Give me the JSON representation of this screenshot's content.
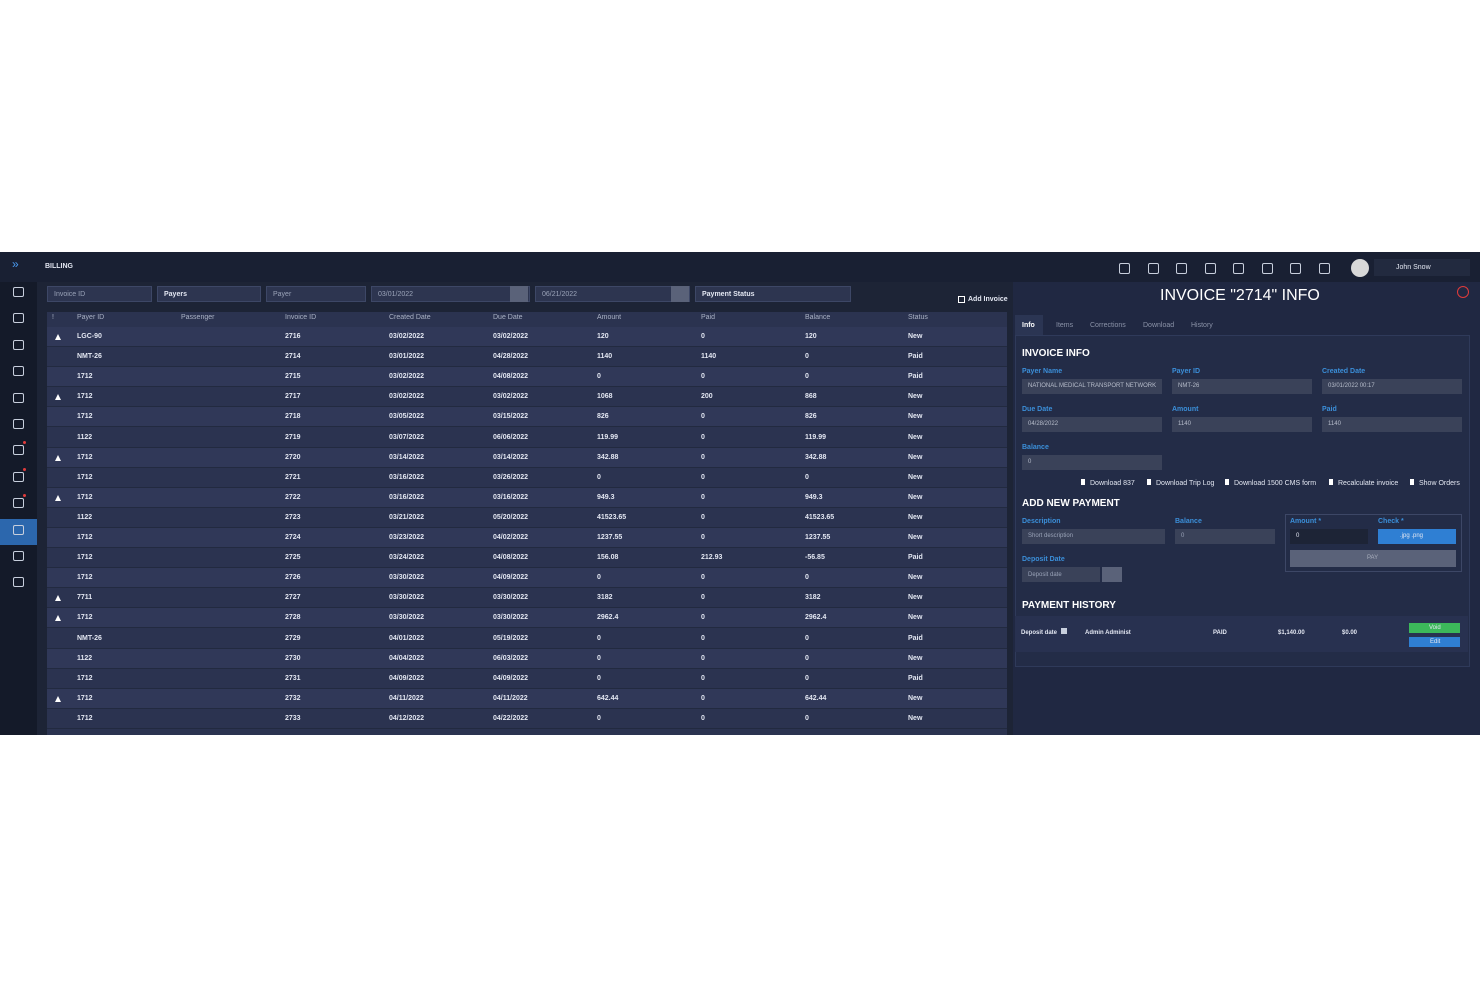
{
  "header": {
    "title": "BILLING",
    "user": "John Snow"
  },
  "filters": {
    "invoice_id": "Invoice ID",
    "payers": "Payers",
    "payer": "Payer",
    "date_from": "03/01/2022",
    "date_to": "06/21/2022",
    "payment_status": "Payment Status",
    "add_invoice": "Add Invoice"
  },
  "table": {
    "columns": [
      "!",
      "Payer ID",
      "Passenger",
      "Invoice ID",
      "Created Date",
      "Due Date",
      "Amount",
      "Paid",
      "Balance",
      "Status"
    ],
    "alerts": [
      true,
      false,
      false,
      true,
      false,
      false,
      true,
      false,
      true,
      false,
      false,
      false,
      false,
      true,
      true,
      false,
      false,
      false,
      true,
      false
    ],
    "rows": [
      [
        "LGC-90",
        "2716",
        "03/02/2022",
        "03/02/2022",
        "120",
        "0",
        "120",
        "New"
      ],
      [
        "NMT-26",
        "2714",
        "03/01/2022",
        "04/28/2022",
        "1140",
        "1140",
        "0",
        "Paid"
      ],
      [
        "1712",
        "2715",
        "03/02/2022",
        "04/08/2022",
        "0",
        "0",
        "0",
        "Paid"
      ],
      [
        "1712",
        "2717",
        "03/02/2022",
        "03/02/2022",
        "1068",
        "200",
        "868",
        "New"
      ],
      [
        "1712",
        "2718",
        "03/05/2022",
        "03/15/2022",
        "826",
        "0",
        "826",
        "New"
      ],
      [
        "1122",
        "2719",
        "03/07/2022",
        "06/06/2022",
        "119.99",
        "0",
        "119.99",
        "New"
      ],
      [
        "1712",
        "2720",
        "03/14/2022",
        "03/14/2022",
        "342.88",
        "0",
        "342.88",
        "New"
      ],
      [
        "1712",
        "2721",
        "03/16/2022",
        "03/26/2022",
        "0",
        "0",
        "0",
        "New"
      ],
      [
        "1712",
        "2722",
        "03/16/2022",
        "03/16/2022",
        "949.3",
        "0",
        "949.3",
        "New"
      ],
      [
        "1122",
        "2723",
        "03/21/2022",
        "05/20/2022",
        "41523.65",
        "0",
        "41523.65",
        "New"
      ],
      [
        "1712",
        "2724",
        "03/23/2022",
        "04/02/2022",
        "1237.55",
        "0",
        "1237.55",
        "New"
      ],
      [
        "1712",
        "2725",
        "03/24/2022",
        "04/08/2022",
        "156.08",
        "212.93",
        "-56.85",
        "Paid"
      ],
      [
        "1712",
        "2726",
        "03/30/2022",
        "04/09/2022",
        "0",
        "0",
        "0",
        "New"
      ],
      [
        "7711",
        "2727",
        "03/30/2022",
        "03/30/2022",
        "3182",
        "0",
        "3182",
        "New"
      ],
      [
        "1712",
        "2728",
        "03/30/2022",
        "03/30/2022",
        "2962.4",
        "0",
        "2962.4",
        "New"
      ],
      [
        "NMT-26",
        "2729",
        "04/01/2022",
        "05/19/2022",
        "0",
        "0",
        "0",
        "Paid"
      ],
      [
        "1122",
        "2730",
        "04/04/2022",
        "06/03/2022",
        "0",
        "0",
        "0",
        "New"
      ],
      [
        "1712",
        "2731",
        "04/09/2022",
        "04/09/2022",
        "0",
        "0",
        "0",
        "Paid"
      ],
      [
        "1712",
        "2732",
        "04/11/2022",
        "04/11/2022",
        "642.44",
        "0",
        "642.44",
        "New"
      ],
      [
        "1712",
        "2733",
        "04/12/2022",
        "04/22/2022",
        "0",
        "0",
        "0",
        "New"
      ]
    ]
  },
  "panel": {
    "title": "INVOICE \"2714\" INFO",
    "tabs": [
      "Info",
      "Items",
      "Corrections",
      "Download",
      "History"
    ],
    "info_title": "INVOICE INFO",
    "fields": [
      {
        "label": "Payer Name",
        "value": "NATIONAL MEDICAL TRANSPORT NETWORK"
      },
      {
        "label": "Payer ID",
        "value": "NMT-26"
      },
      {
        "label": "Created Date",
        "value": "03/01/2022 00:17"
      },
      {
        "label": "Due Date",
        "value": "04/28/2022"
      },
      {
        "label": "Amount",
        "value": "1140"
      },
      {
        "label": "Paid",
        "value": "1140"
      },
      {
        "label": "Balance",
        "value": "0"
      }
    ],
    "actions": [
      "Download 837",
      "Download Trip Log",
      "Download 1500 CMS form",
      "Recalculate invoice",
      "Show Orders"
    ],
    "payment_title": "ADD NEW PAYMENT",
    "payment": {
      "description_label": "Description",
      "description_placeholder": "Short description",
      "balance_label": "Balance",
      "balance_value": "0",
      "amount_label": "Amount *",
      "amount_value": "0",
      "check_label": "Check *",
      "check_button": ".jpg .png",
      "deposit_label": "Deposit Date",
      "deposit_placeholder": "Deposit date",
      "pay": "PAY"
    },
    "history_title": "PAYMENT HISTORY",
    "history": {
      "deposit": "Deposit date",
      "user": "Admin Administ",
      "status": "PAID",
      "amount": "$1,140.00",
      "balance": "$0.00",
      "void": "Void",
      "edit": "Edit"
    }
  }
}
